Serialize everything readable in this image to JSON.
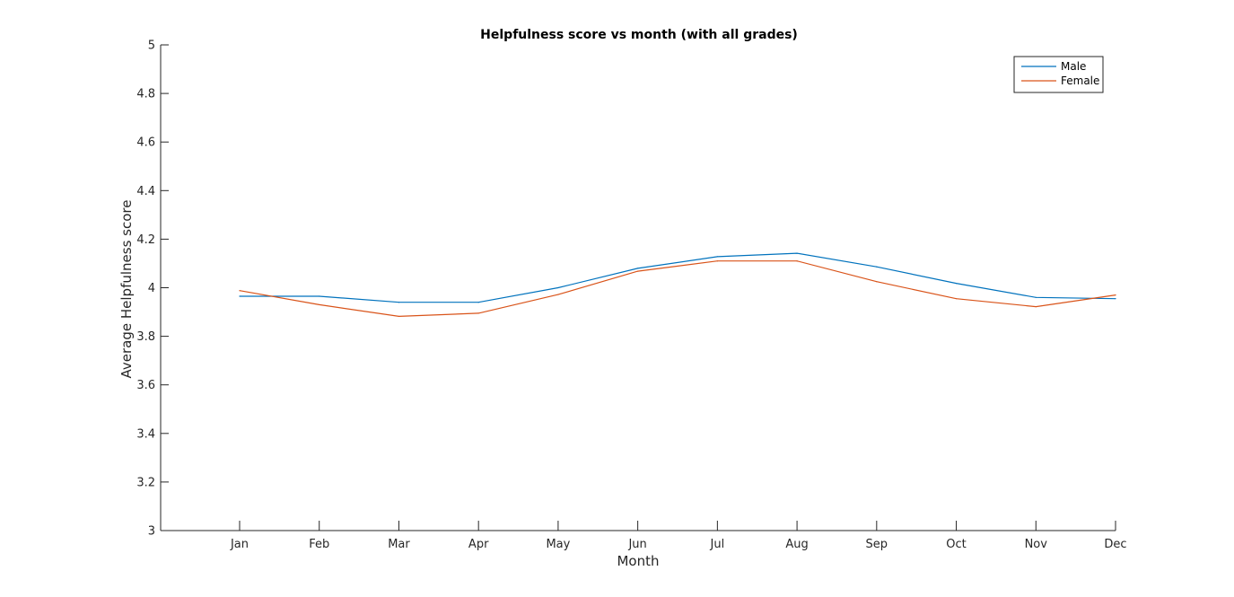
{
  "chart_data": {
    "type": "line",
    "title": "Helpfulness score vs month (with all grades)",
    "xlabel": "Month",
    "ylabel": "Average Helpfulness score",
    "categories": [
      "Jan",
      "Feb",
      "Mar",
      "Apr",
      "May",
      "Jun",
      "Jul",
      "Aug",
      "Sep",
      "Oct",
      "Nov",
      "Dec"
    ],
    "ylim": [
      3,
      5
    ],
    "yticks": [
      "3",
      "3.2",
      "3.4",
      "3.6",
      "3.8",
      "4",
      "4.2",
      "4.4",
      "4.6",
      "4.8",
      "5"
    ],
    "grid": false,
    "legend_position": "top-right",
    "series": [
      {
        "name": "Male",
        "color": "#0072BD",
        "values": [
          3.965,
          3.965,
          3.94,
          3.94,
          4.0,
          4.08,
          4.128,
          4.142,
          4.086,
          4.018,
          3.96,
          3.955
        ]
      },
      {
        "name": "Female",
        "color": "#D95319",
        "values": [
          3.988,
          3.93,
          3.882,
          3.895,
          3.972,
          4.068,
          4.11,
          4.11,
          4.025,
          3.955,
          3.922,
          3.97
        ]
      }
    ]
  }
}
